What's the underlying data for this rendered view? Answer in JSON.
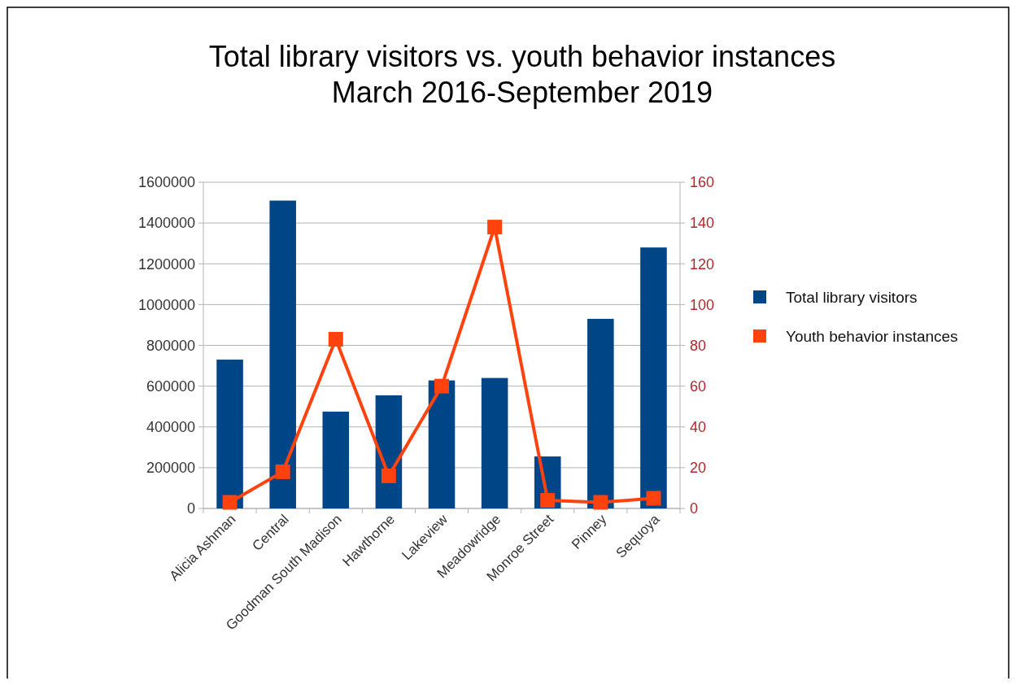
{
  "chart_data": {
    "type": "bar",
    "title": "Total library visitors vs. youth behavior instances\nMarch 2016-September 2019",
    "categories": [
      "Alicia Ashman",
      "Central",
      "Goodman South Madison",
      "Hawthorne",
      "Lakeview",
      "Meadowridge",
      "Monroe Street",
      "Pinney",
      "Sequoya"
    ],
    "series": [
      {
        "name": "Total library visitors",
        "color": "#004586",
        "values": [
          730000,
          1510000,
          475000,
          555000,
          628000,
          640000,
          255000,
          930000,
          1280000
        ]
      },
      {
        "name": "Youth behavior instances",
        "type": "line",
        "axis": "y2",
        "color": "#ff420e",
        "marker": "square",
        "values": [
          3,
          18,
          83,
          16,
          60,
          138,
          4,
          3,
          5
        ]
      }
    ],
    "ylim": [
      0,
      1600000
    ],
    "yticks": [
      0,
      200000,
      400000,
      600000,
      800000,
      1000000,
      1200000,
      1400000,
      1600000
    ],
    "y2lim": [
      0,
      160
    ],
    "y2ticks": [
      0,
      20,
      40,
      60,
      80,
      100,
      120,
      140,
      160
    ],
    "grid": "y",
    "legend": "right"
  }
}
